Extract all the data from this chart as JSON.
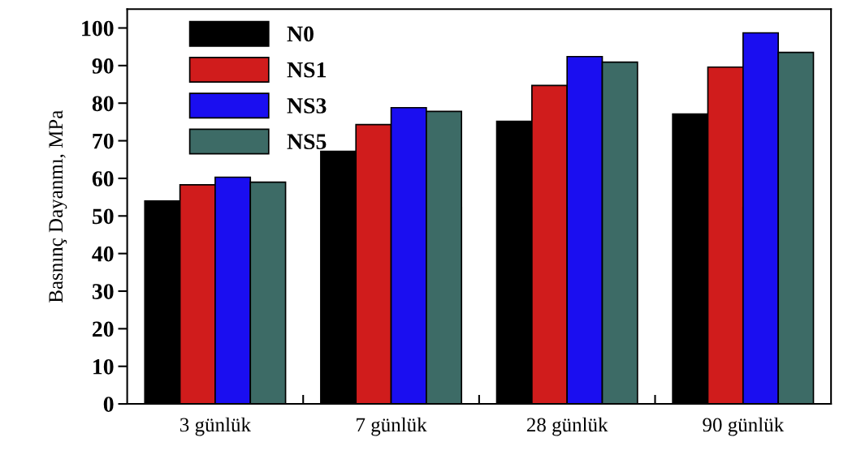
{
  "chart_data": {
    "type": "bar",
    "ylabel": "Basnınç Dayanmı, MPa",
    "categories": [
      "3 günlük",
      "7 günlük",
      "28 günlük",
      "90 günlük"
    ],
    "series": [
      {
        "name": "N0",
        "color": "#000000",
        "values": [
          54,
          67.2,
          75.2,
          77.1
        ]
      },
      {
        "name": "NS1",
        "color": "#d01c1c",
        "values": [
          58.3,
          74.3,
          84.7,
          89.6
        ]
      },
      {
        "name": "NS3",
        "color": "#1a0ef0",
        "values": [
          60.3,
          78.8,
          92.4,
          98.7
        ]
      },
      {
        "name": "NS5",
        "color": "#3d6b66",
        "values": [
          59,
          77.8,
          90.9,
          93.5
        ]
      }
    ],
    "ylim": [
      0,
      105
    ],
    "yticks": [
      0,
      10,
      20,
      30,
      40,
      50,
      60,
      70,
      80,
      90,
      100
    ],
    "legend": "top left",
    "grid": false
  }
}
